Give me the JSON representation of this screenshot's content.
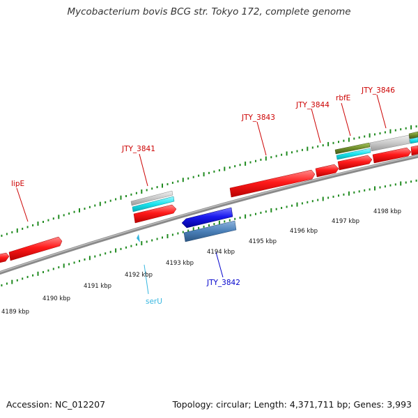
{
  "title": "Mycobacterium bovis BCG str. Tokyo 172, complete genome",
  "footer": {
    "accession": "Accession: NC_012207",
    "summary": "Topology: circular; Length: 4,371,711 bp; Genes: 3,993"
  },
  "colors": {
    "forward_gene": "#ff1a1a",
    "reverse_gene": "#1a1aee",
    "reverse_cds": "#4a7fb8",
    "cds_cyan": "#19e3ee",
    "cds_gray": "#c9c9c9",
    "cds_olive": "#6e8c2a",
    "trna_label": "#36b6e0",
    "ticks": "#1f8a1f",
    "backbone": "#8a8a8a"
  },
  "scale_labels": [
    "4189 kbp",
    "4190 kbp",
    "4191 kbp",
    "4192 kbp",
    "4193 kbp",
    "4194 kbp",
    "4195 kbp",
    "4196 kbp",
    "4197 kbp",
    "4198 kbp"
  ],
  "gene_labels": [
    {
      "text": "lipE",
      "strand": "forward"
    },
    {
      "text": "JTY_3841",
      "strand": "forward"
    },
    {
      "text": "JTY_3843",
      "strand": "forward"
    },
    {
      "text": "JTY_3844",
      "strand": "forward"
    },
    {
      "text": "rbfE",
      "strand": "forward"
    },
    {
      "text": "JTY_3846",
      "strand": "forward"
    },
    {
      "text": "JTY_3842",
      "strand": "reverse"
    },
    {
      "text": "serU",
      "strand": "reverse"
    }
  ]
}
